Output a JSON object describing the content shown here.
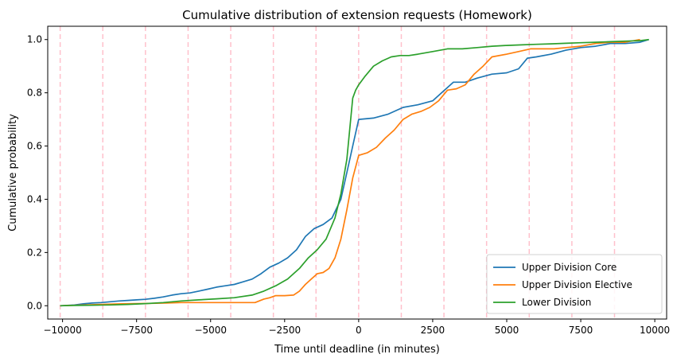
{
  "chart_data": {
    "type": "line",
    "title": "Cumulative distribution of extension requests (Homework)",
    "xlabel": "Time until deadline (in minutes)",
    "ylabel": "Cumulative probability",
    "xlim": [
      -10500,
      10400
    ],
    "ylim": [
      -0.05,
      1.05
    ],
    "xticks": [
      -10000,
      -7500,
      -5000,
      -2500,
      0,
      2500,
      5000,
      7500,
      10000
    ],
    "xtick_labels": [
      "−10000",
      "−7500",
      "−5000",
      "−2500",
      "0",
      "2500",
      "5000",
      "7500",
      "10000"
    ],
    "yticks": [
      0.0,
      0.2,
      0.4,
      0.6,
      0.8,
      1.0
    ],
    "ytick_labels": [
      "0.0",
      "0.2",
      "0.4",
      "0.6",
      "0.8",
      "1.0"
    ],
    "vlines": [
      -10080,
      -8640,
      -7200,
      -5760,
      -4320,
      -2880,
      -1440,
      0,
      1440,
      2880,
      4320,
      5760,
      7200,
      8640
    ],
    "vline_color": "#ffc0cb",
    "legend_position": "lower right",
    "series": [
      {
        "name": "Upper Division Core",
        "color": "#1f77b4",
        "x": [
          -10080,
          -9600,
          -9300,
          -9000,
          -8700,
          -8400,
          -8100,
          -7800,
          -7500,
          -7200,
          -6900,
          -6600,
          -6300,
          -6000,
          -5700,
          -5400,
          -5100,
          -4800,
          -4500,
          -4200,
          -3900,
          -3600,
          -3300,
          -3000,
          -2700,
          -2400,
          -2100,
          -1800,
          -1500,
          -1200,
          -900,
          -600,
          -400,
          -200,
          0,
          500,
          1000,
          1500,
          2000,
          2500,
          2800,
          3200,
          3600,
          4000,
          4500,
          5000,
          5400,
          5700,
          6000,
          6500,
          7000,
          7500,
          8000,
          8500,
          9000,
          9500,
          9800
        ],
        "y": [
          0.0,
          0.003,
          0.007,
          0.01,
          0.012,
          0.015,
          0.018,
          0.02,
          0.022,
          0.024,
          0.028,
          0.033,
          0.04,
          0.045,
          0.048,
          0.055,
          0.062,
          0.07,
          0.075,
          0.08,
          0.09,
          0.1,
          0.12,
          0.145,
          0.16,
          0.18,
          0.21,
          0.26,
          0.29,
          0.305,
          0.33,
          0.4,
          0.5,
          0.6,
          0.7,
          0.705,
          0.72,
          0.745,
          0.755,
          0.77,
          0.8,
          0.84,
          0.84,
          0.855,
          0.87,
          0.875,
          0.89,
          0.93,
          0.935,
          0.945,
          0.96,
          0.97,
          0.975,
          0.985,
          0.985,
          0.99,
          1.0
        ]
      },
      {
        "name": "Upper Division Elective",
        "color": "#ff7f0e",
        "x": [
          -10080,
          -9300,
          -8700,
          -8000,
          -7500,
          -7000,
          -6500,
          -6000,
          -5500,
          -5000,
          -4500,
          -4000,
          -3500,
          -3200,
          -3000,
          -2800,
          -2500,
          -2200,
          -2000,
          -1800,
          -1600,
          -1400,
          -1200,
          -1000,
          -800,
          -600,
          -400,
          -200,
          0,
          300,
          600,
          900,
          1200,
          1500,
          1800,
          2100,
          2400,
          2700,
          3000,
          3300,
          3600,
          3900,
          4200,
          4500,
          5000,
          5400,
          5800,
          6200,
          6600,
          7000,
          7500,
          8000,
          8500,
          9000,
          9500
        ],
        "y": [
          0.0,
          0.003,
          0.005,
          0.007,
          0.008,
          0.009,
          0.01,
          0.012,
          0.012,
          0.012,
          0.012,
          0.012,
          0.012,
          0.025,
          0.03,
          0.038,
          0.038,
          0.04,
          0.055,
          0.08,
          0.1,
          0.12,
          0.125,
          0.14,
          0.18,
          0.25,
          0.36,
          0.48,
          0.565,
          0.575,
          0.595,
          0.63,
          0.66,
          0.7,
          0.72,
          0.73,
          0.745,
          0.77,
          0.81,
          0.815,
          0.83,
          0.87,
          0.9,
          0.935,
          0.945,
          0.955,
          0.965,
          0.965,
          0.965,
          0.97,
          0.975,
          0.985,
          0.99,
          0.99,
          1.0
        ]
      },
      {
        "name": "Lower Division",
        "color": "#2ca02c",
        "x": [
          -10080,
          -9600,
          -9000,
          -8400,
          -7800,
          -7200,
          -6600,
          -6000,
          -5400,
          -4800,
          -4200,
          -3600,
          -3200,
          -2800,
          -2400,
          -2000,
          -1700,
          -1400,
          -1100,
          -800,
          -600,
          -400,
          -200,
          -100,
          0,
          200,
          500,
          800,
          1100,
          1400,
          1700,
          2000,
          2500,
          3000,
          3500,
          4000,
          4500,
          5000,
          5500,
          6000,
          6500,
          7000,
          7500,
          8000,
          8500,
          9000,
          9500,
          9800
        ],
        "y": [
          0.0,
          0.001,
          0.002,
          0.003,
          0.005,
          0.008,
          0.012,
          0.018,
          0.022,
          0.026,
          0.03,
          0.04,
          0.055,
          0.075,
          0.1,
          0.14,
          0.18,
          0.21,
          0.25,
          0.33,
          0.42,
          0.55,
          0.78,
          0.81,
          0.83,
          0.86,
          0.9,
          0.92,
          0.935,
          0.94,
          0.94,
          0.945,
          0.955,
          0.965,
          0.965,
          0.97,
          0.975,
          0.978,
          0.98,
          0.982,
          0.984,
          0.986,
          0.988,
          0.99,
          0.992,
          0.994,
          0.996,
          1.0
        ]
      }
    ]
  }
}
